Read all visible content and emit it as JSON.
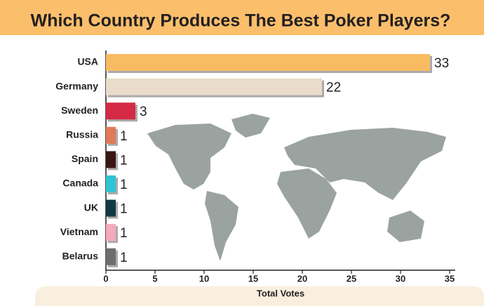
{
  "chart_data": {
    "type": "bar",
    "orientation": "horizontal",
    "title": "Which Country Produces The Best Poker Players?",
    "categories": [
      "USA",
      "Germany",
      "Sweden",
      "Russia",
      "Spain",
      "Canada",
      "UK",
      "Vietnam",
      "Belarus"
    ],
    "values": [
      33,
      22,
      3,
      1,
      1,
      1,
      1,
      1,
      1
    ],
    "colors": [
      "#f9bb62",
      "#eadccb",
      "#d42a45",
      "#e07b55",
      "#3a1612",
      "#2ec4d6",
      "#0f3a45",
      "#f5a9bc",
      "#6d6d6d"
    ],
    "xlim": [
      0,
      35
    ],
    "xticks": [
      0,
      5,
      10,
      15,
      20,
      25,
      30,
      35
    ],
    "xlabel": "Total Votes"
  }
}
